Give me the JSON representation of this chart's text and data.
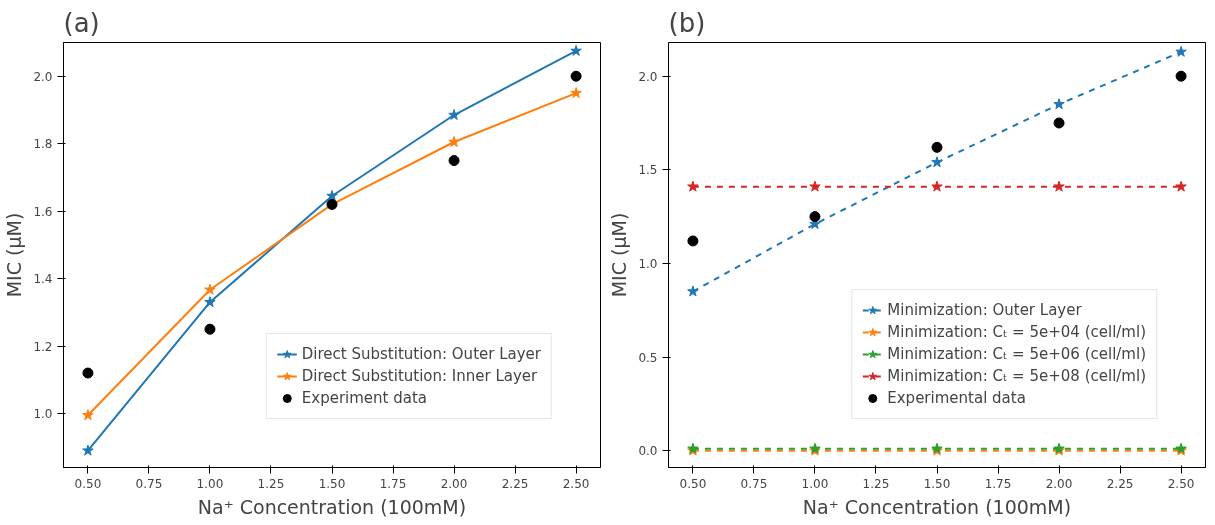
{
  "chart_data": [
    {
      "type": "line",
      "title": "(a)",
      "xlabel": "Na⁺ Concentration (100mM)",
      "ylabel": "MIC (μM)",
      "x": [
        0.5,
        1.0,
        1.5,
        2.0,
        2.5
      ],
      "xlim": [
        0.4,
        2.6
      ],
      "ylim": [
        0.84,
        2.1
      ],
      "xticks": [
        {
          "value": 0.5,
          "label": "0.50"
        },
        {
          "value": 0.75,
          "label": "0.75"
        },
        {
          "value": 1.0,
          "label": "1.00"
        },
        {
          "value": 1.25,
          "label": "1.25"
        },
        {
          "value": 1.5,
          "label": "1.50"
        },
        {
          "value": 1.75,
          "label": "1.75"
        },
        {
          "value": 2.0,
          "label": "2.00"
        },
        {
          "value": 2.25,
          "label": "2.25"
        },
        {
          "value": 2.5,
          "label": "2.50"
        }
      ],
      "yticks": [
        {
          "value": 1.0,
          "label": "1.0"
        },
        {
          "value": 1.2,
          "label": "1.2"
        },
        {
          "value": 1.4,
          "label": "1.4"
        },
        {
          "value": 1.6,
          "label": "1.6"
        },
        {
          "value": 1.8,
          "label": "1.8"
        },
        {
          "value": 2.0,
          "label": "2.0"
        }
      ],
      "grid": false,
      "legend": "bottom right",
      "series": [
        {
          "name": "Direct Substitution: Outer Layer",
          "color": "#1f77b4",
          "type": "line",
          "marker": "star",
          "line_style": "solid",
          "values": [
            0.89,
            1.33,
            1.645,
            1.885,
            2.075
          ]
        },
        {
          "name": "Direct Substitution: Inner Layer",
          "color": "#ff7f0e",
          "type": "line",
          "marker": "star",
          "line_style": "solid",
          "values": [
            0.995,
            1.367,
            1.62,
            1.805,
            1.95
          ]
        },
        {
          "name": "Experiment data",
          "color": "#000000",
          "type": "scatter",
          "marker": "circle",
          "values": [
            1.12,
            1.25,
            1.62,
            1.75,
            2.0
          ]
        }
      ]
    },
    {
      "type": "line",
      "title": "(b)",
      "xlabel": "Na⁺ Concentration (100mM)",
      "ylabel": "MIC (μM)",
      "x": [
        0.5,
        1.0,
        1.5,
        2.0,
        2.5
      ],
      "xlim": [
        0.4,
        2.6
      ],
      "ylim": [
        -0.09,
        2.18
      ],
      "xticks": [
        {
          "value": 0.5,
          "label": "0.50"
        },
        {
          "value": 0.75,
          "label": "0.75"
        },
        {
          "value": 1.0,
          "label": "1.00"
        },
        {
          "value": 1.25,
          "label": "1.25"
        },
        {
          "value": 1.5,
          "label": "1.50"
        },
        {
          "value": 1.75,
          "label": "1.75"
        },
        {
          "value": 2.0,
          "label": "2.00"
        },
        {
          "value": 2.25,
          "label": "2.25"
        },
        {
          "value": 2.5,
          "label": "2.50"
        }
      ],
      "yticks": [
        {
          "value": 0.0,
          "label": "0.0"
        },
        {
          "value": 0.5,
          "label": "0.5"
        },
        {
          "value": 1.0,
          "label": "1.0"
        },
        {
          "value": 1.5,
          "label": "1.5"
        },
        {
          "value": 2.0,
          "label": "2.0"
        }
      ],
      "grid": false,
      "legend": "bottom right",
      "series": [
        {
          "name": "Minimization: Outer Layer",
          "color": "#1f77b4",
          "type": "line",
          "marker": "star",
          "line_style": "dashed",
          "values": [
            0.85,
            1.21,
            1.54,
            1.85,
            2.13
          ]
        },
        {
          "name": "Minimization: Cₜ = 5e+04 (cell/ml)",
          "color": "#ff7f0e",
          "type": "line",
          "marker": "star",
          "line_style": "dashed",
          "values": [
            0.0,
            0.0,
            0.0,
            0.0,
            0.0
          ]
        },
        {
          "name": "Minimization: Cₜ = 5e+06 (cell/ml)",
          "color": "#2ca02c",
          "type": "line",
          "marker": "star",
          "line_style": "dashed",
          "values": [
            0.01,
            0.01,
            0.01,
            0.01,
            0.01
          ]
        },
        {
          "name": "Minimization: Cₜ = 5e+08 (cell/ml)",
          "color": "#d62728",
          "type": "line",
          "marker": "star",
          "line_style": "dashed",
          "values": [
            1.41,
            1.41,
            1.41,
            1.41,
            1.41
          ]
        },
        {
          "name": "Experimental data",
          "color": "#000000",
          "type": "scatter",
          "marker": "circle",
          "values": [
            1.12,
            1.25,
            1.62,
            1.75,
            2.0
          ]
        }
      ]
    }
  ]
}
